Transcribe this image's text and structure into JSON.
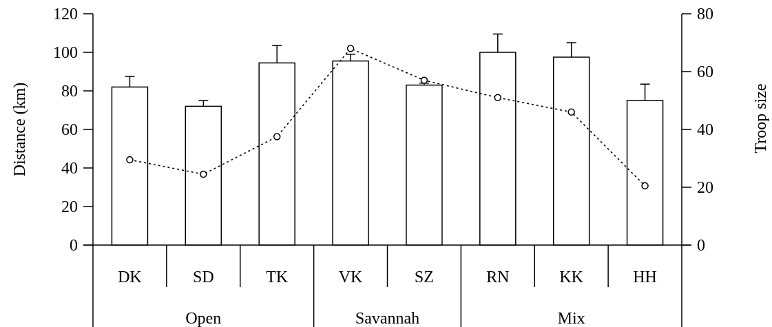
{
  "chart_data": {
    "type": "bar",
    "categories": [
      "DK",
      "SD",
      "TK",
      "VK",
      "SZ",
      "RN",
      "KK",
      "HH"
    ],
    "groups": [
      {
        "label": "Open",
        "categories": [
          "DK",
          "SD",
          "TK"
        ]
      },
      {
        "label": "Savannah",
        "categories": [
          "VK",
          "SZ"
        ]
      },
      {
        "label": "Mix",
        "categories": [
          "RN",
          "KK",
          "HH"
        ]
      }
    ],
    "series": [
      {
        "type": "bar",
        "axis": "left",
        "values": [
          82,
          72,
          94.5,
          95.5,
          83,
          100,
          97.5,
          75
        ],
        "error_upper": [
          5.5,
          3,
          9,
          3.5,
          1,
          9.5,
          7.5,
          8.5
        ]
      },
      {
        "type": "line",
        "axis": "right",
        "style": "dotted",
        "marker": "open-circle",
        "values": [
          29.5,
          24.5,
          37.5,
          68,
          57,
          51,
          46,
          20.5
        ]
      }
    ],
    "ylabel": "Distance (km)",
    "y2label": "Troop size",
    "ylim": [
      0,
      120
    ],
    "y2lim": [
      0,
      80
    ],
    "yticks": [
      0,
      20,
      40,
      60,
      80,
      100,
      120
    ],
    "y2ticks": [
      0,
      20,
      40,
      60,
      80
    ],
    "grid": false
  }
}
